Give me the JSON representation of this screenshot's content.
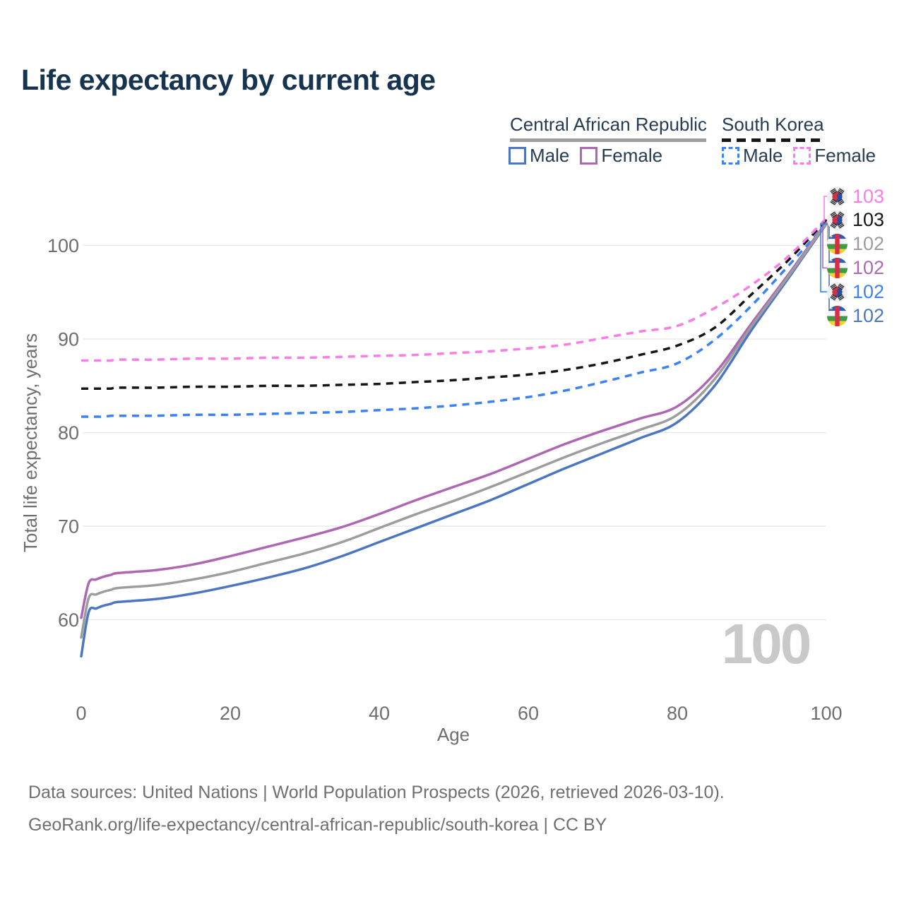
{
  "page_title": "Life expectancy by current age",
  "watermark_age": "100",
  "legend": {
    "groups": [
      {
        "country": "Central African Republic",
        "style": "solid",
        "line_color": "#9d9d9d",
        "items": [
          {
            "label": "Male",
            "color": "#4d76c2"
          },
          {
            "label": "Female",
            "color": "#ae67b3"
          }
        ]
      },
      {
        "country": "South Korea",
        "style": "dashed",
        "line_color": "#161616",
        "items": [
          {
            "label": "Male",
            "color": "#3b83f2"
          },
          {
            "label": "Female",
            "color": "#fa7ce6"
          }
        ]
      }
    ]
  },
  "chart_data": {
    "type": "line",
    "title": "Life expectancy by current age",
    "xlabel": "Age",
    "ylabel": "Total life expectancy, years",
    "xlim": [
      0,
      100
    ],
    "ylim": [
      54,
      105
    ],
    "x_ticks": [
      0,
      20,
      40,
      60,
      80,
      100
    ],
    "y_ticks": [
      60,
      70,
      80,
      90,
      100
    ],
    "grid": "horizontal",
    "legend_position": "top-right",
    "ages": [
      0,
      1,
      2,
      3,
      4,
      5,
      10,
      15,
      20,
      25,
      30,
      35,
      40,
      45,
      50,
      55,
      60,
      65,
      70,
      75,
      80,
      85,
      90,
      95,
      100
    ],
    "series": [
      {
        "name": "South Korea Female",
        "flag": "kr",
        "color": "#fa7ce6",
        "dash": true,
        "end_label": "103",
        "values": [
          87.7,
          87.7,
          87.7,
          87.7,
          87.7,
          87.8,
          87.8,
          87.9,
          87.9,
          88.0,
          88.0,
          88.1,
          88.2,
          88.3,
          88.5,
          88.7,
          89.0,
          89.4,
          90.1,
          90.8,
          91.4,
          93.3,
          95.8,
          98.9,
          102.9
        ]
      },
      {
        "name": "South Korea Both sexes",
        "flag": "kr",
        "color": "#161616",
        "dash": true,
        "end_label": "103",
        "values": [
          84.7,
          84.7,
          84.7,
          84.7,
          84.7,
          84.8,
          84.8,
          84.9,
          84.9,
          85.0,
          85.0,
          85.1,
          85.2,
          85.4,
          85.6,
          85.9,
          86.2,
          86.7,
          87.4,
          88.3,
          89.3,
          91.2,
          94.8,
          98.5,
          102.7
        ]
      },
      {
        "name": "Central African Republic Both sexes",
        "flag": "cf",
        "color": "#9d9d9d",
        "dash": false,
        "end_label": "102",
        "values": [
          58.1,
          62.3,
          62.7,
          63.0,
          63.2,
          63.4,
          63.7,
          64.3,
          65.1,
          66.1,
          67.1,
          68.3,
          69.8,
          71.3,
          72.7,
          74.2,
          75.8,
          77.4,
          78.9,
          80.3,
          81.9,
          85.7,
          91.4,
          96.8,
          102.4
        ]
      },
      {
        "name": "Central African Republic Female",
        "flag": "cf",
        "color": "#ae67b3",
        "dash": false,
        "end_label": "102",
        "values": [
          60.2,
          63.9,
          64.3,
          64.6,
          64.8,
          65.0,
          65.3,
          65.9,
          66.8,
          67.8,
          68.8,
          69.9,
          71.3,
          72.8,
          74.2,
          75.6,
          77.2,
          78.8,
          80.2,
          81.5,
          82.8,
          86.3,
          91.7,
          97.0,
          102.5
        ]
      },
      {
        "name": "South Korea Male",
        "flag": "kr",
        "color": "#3b83f2",
        "dash": true,
        "end_label": "102",
        "values": [
          81.7,
          81.7,
          81.7,
          81.7,
          81.8,
          81.8,
          81.8,
          81.9,
          81.9,
          82.0,
          82.1,
          82.2,
          82.4,
          82.6,
          82.9,
          83.3,
          83.8,
          84.5,
          85.4,
          86.4,
          87.4,
          89.9,
          93.6,
          97.9,
          102.3
        ]
      },
      {
        "name": "Central African Republic Male",
        "flag": "cf",
        "color": "#4d76c2",
        "dash": false,
        "end_label": "102",
        "values": [
          56.1,
          60.8,
          61.2,
          61.5,
          61.7,
          61.9,
          62.2,
          62.8,
          63.6,
          64.5,
          65.5,
          66.8,
          68.3,
          69.8,
          71.3,
          72.8,
          74.5,
          76.2,
          77.8,
          79.4,
          81.1,
          85.0,
          91.0,
          96.6,
          102.3
        ]
      }
    ]
  },
  "footer": {
    "line1": "Data sources: United Nations | World Population Prospects (2026, retrieved 2026-03-10).",
    "line2": "GeoRank.org/life-expectancy/central-african-republic/south-korea | CC BY"
  }
}
